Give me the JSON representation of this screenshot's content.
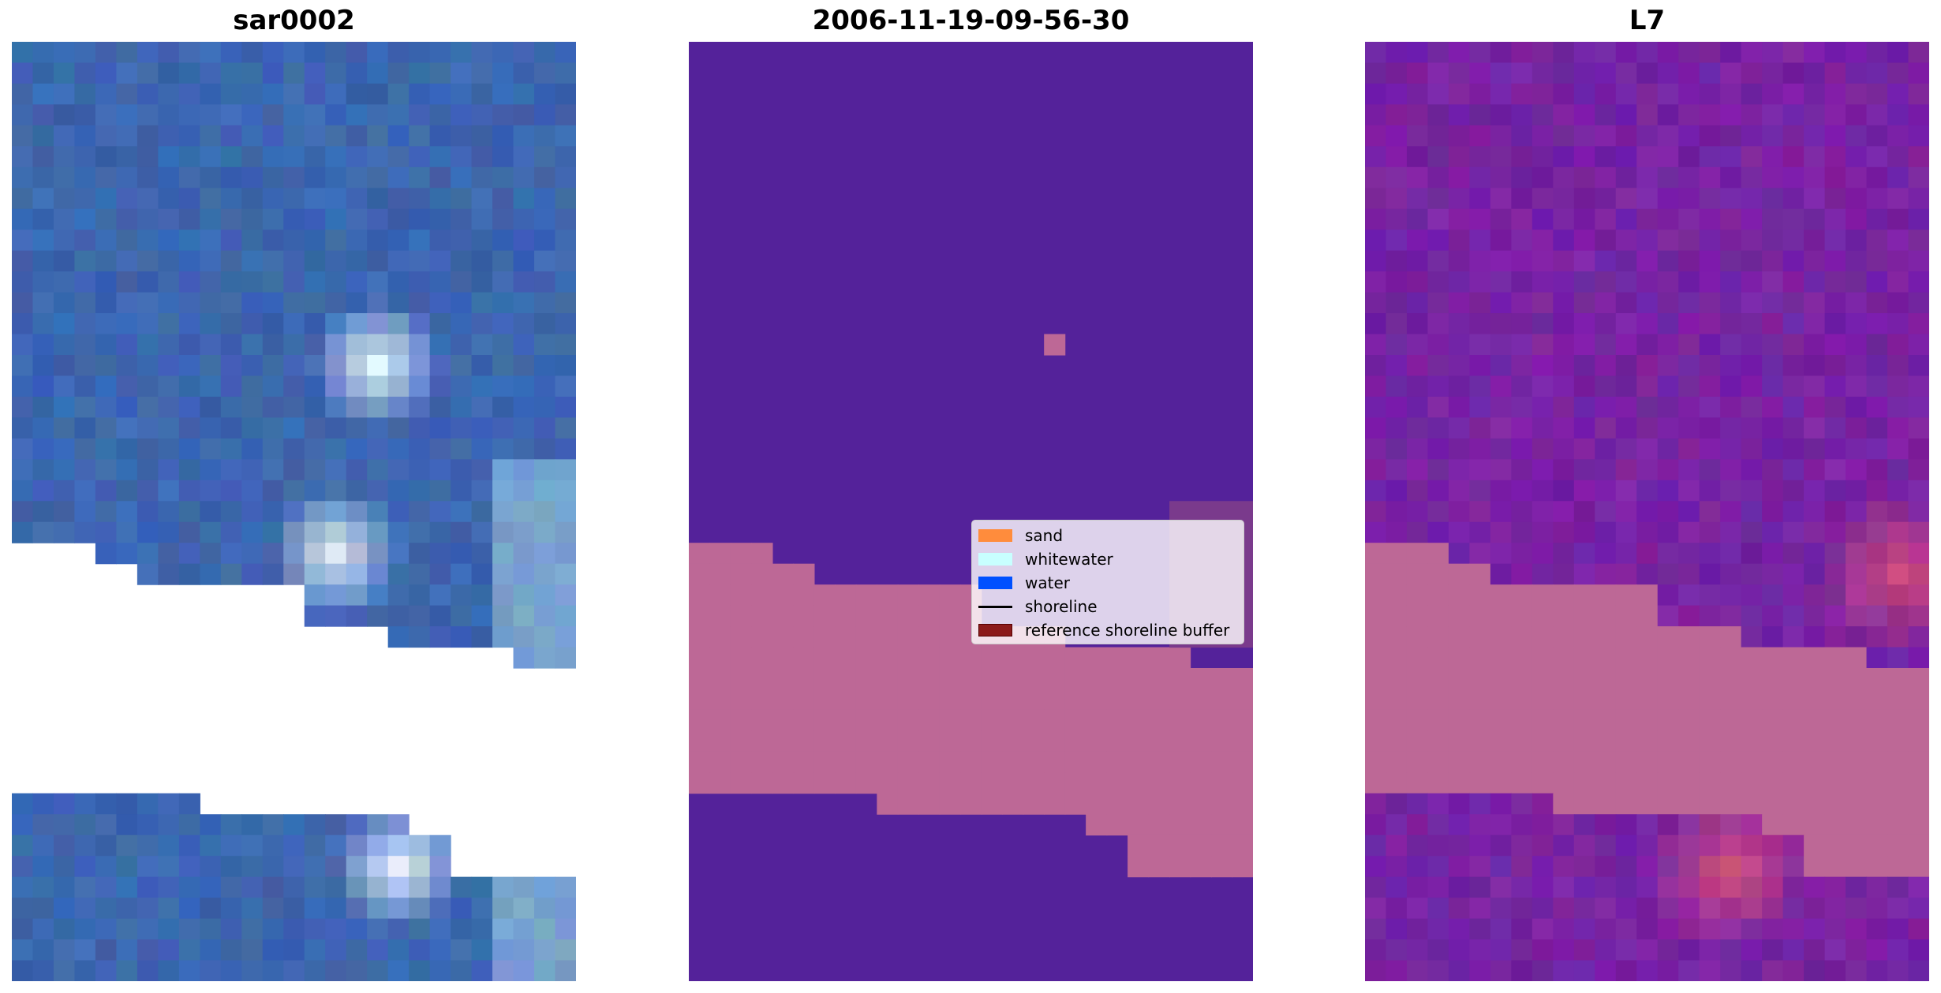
{
  "panels": [
    {
      "title": "sar0002"
    },
    {
      "title": "2006-11-19-09-56-30"
    },
    {
      "title": "L7"
    }
  ],
  "legend": {
    "items": [
      {
        "label": "sand",
        "kind": "patch",
        "color": "#ff8c3c"
      },
      {
        "label": "whitewater",
        "kind": "patch",
        "color": "#c8ffff"
      },
      {
        "label": "water",
        "kind": "patch",
        "color": "#0050ff"
      },
      {
        "label": "shoreline",
        "kind": "line",
        "color": "#000000"
      },
      {
        "label": "reference shoreline buffer",
        "kind": "patch",
        "color": "#8b1a1a"
      }
    ]
  },
  "colors": {
    "water_class": "#54229a",
    "sand_class": "#bd6896",
    "rgb_water": "#3660aa",
    "index_water": "#74229e"
  }
}
